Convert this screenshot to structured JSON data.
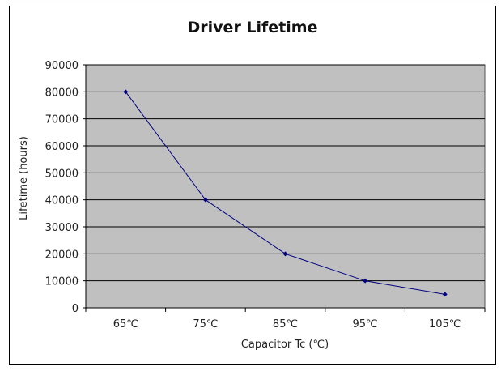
{
  "chart_data": {
    "type": "line",
    "title": "Driver Lifetime",
    "xlabel": "Capacitor Tc (℃)",
    "ylabel": "Lifetime (hours)",
    "categories": [
      "65℃",
      "75℃",
      "85℃",
      "95℃",
      "105℃"
    ],
    "series": [
      {
        "values": [
          80000,
          40000,
          20000,
          10000,
          5000
        ]
      }
    ],
    "ylim": [
      0,
      90000
    ],
    "yticks": [
      0,
      10000,
      20000,
      30000,
      40000,
      50000,
      60000,
      70000,
      80000,
      90000
    ],
    "grid": true,
    "legend": "none",
    "colors": {
      "plot_bg": "#c0c0c0",
      "line": "#000080",
      "grid": "#000000"
    }
  }
}
